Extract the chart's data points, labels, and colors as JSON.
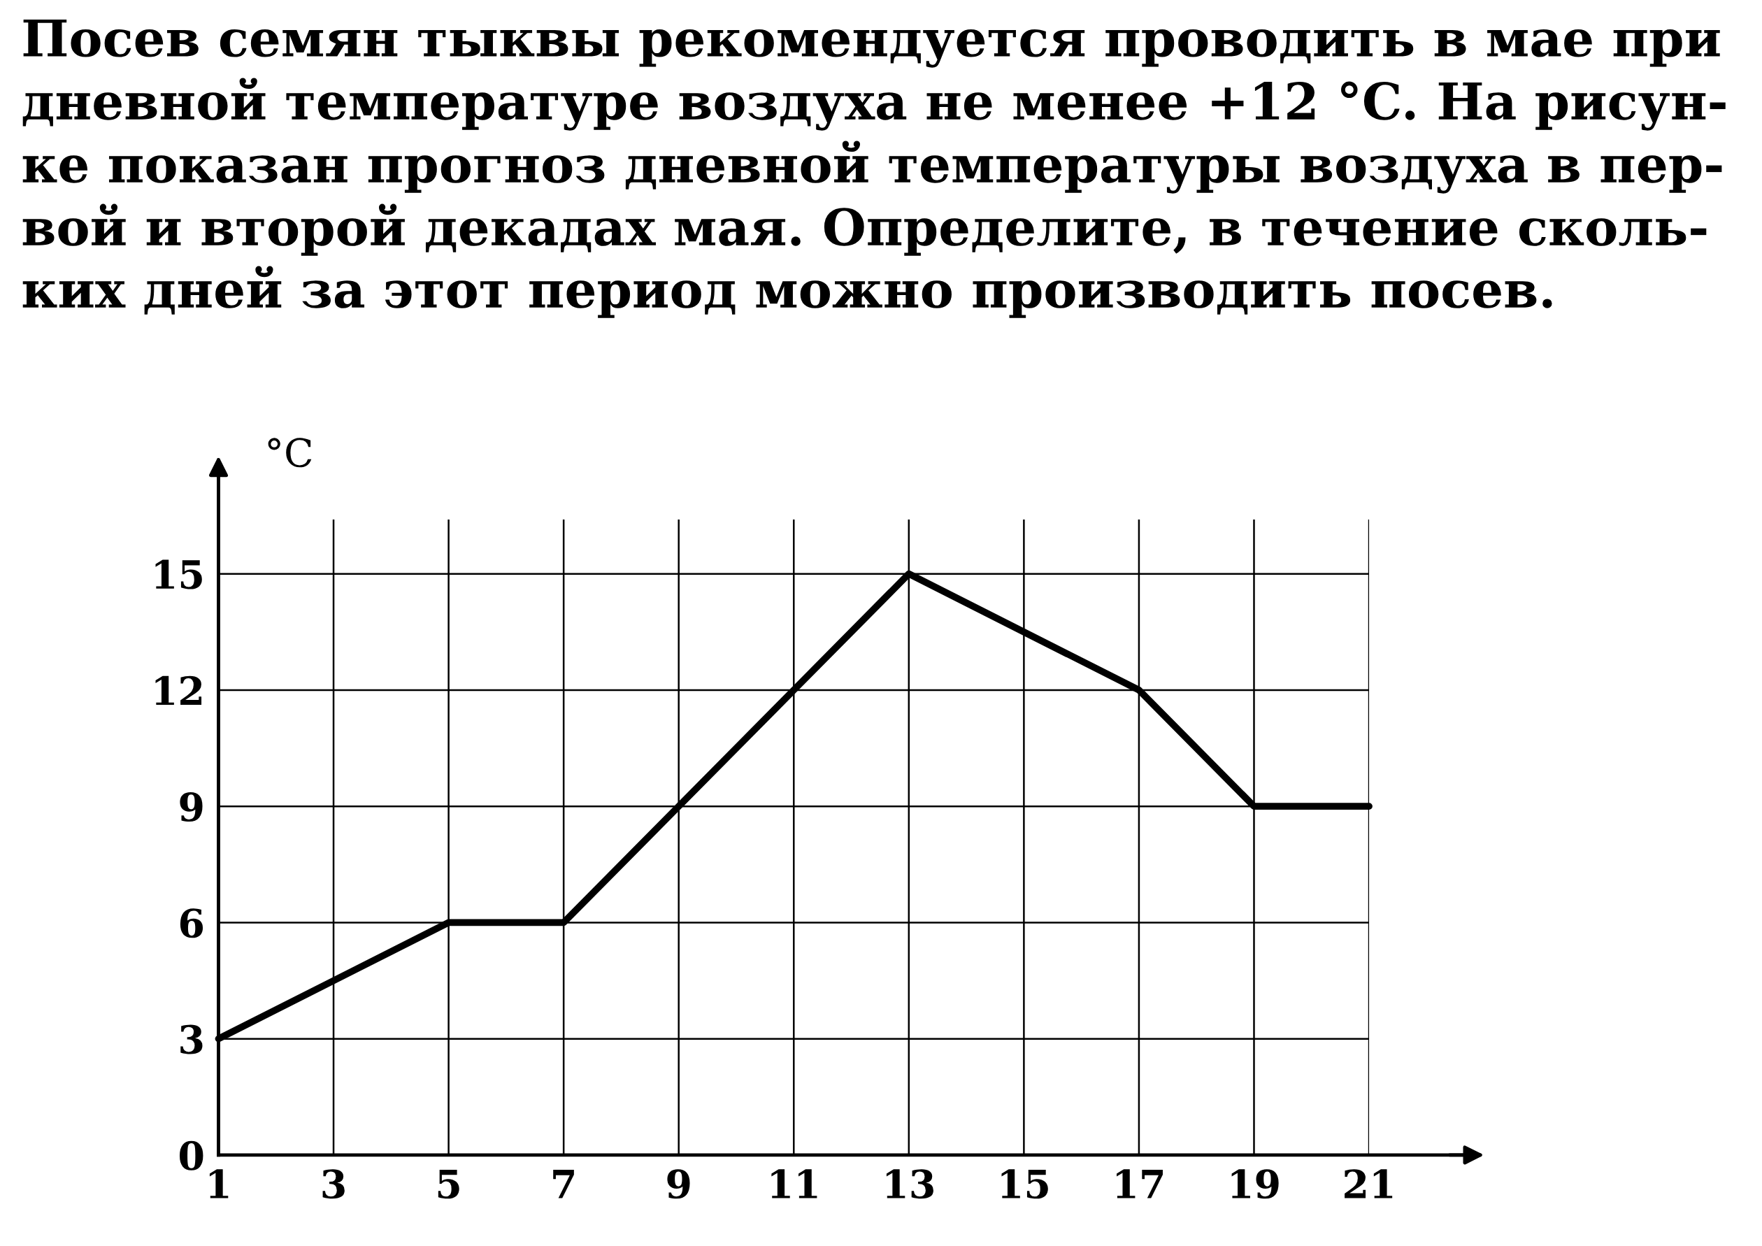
{
  "chart_data": {
    "type": "line",
    "title": "Посев семян тыквы рекомендуется проводить в мае при\nдневной температуре воздуха не менее +12 °C. На рисун-\nке показан прогноз дневной температуры воздуха в пер-\nвой и второй декадах мая. Определите, в течение сколь-\nких дней за этот период можно производить посев.",
    "ylabel": "°C",
    "x": [
      1,
      5,
      7,
      9,
      11,
      13,
      17,
      19,
      21
    ],
    "series": [
      {
        "color": "#000000",
        "values": [
          3,
          6,
          6,
          9,
          12,
          15,
          12,
          9,
          9
        ]
      }
    ],
    "xlim": [
      1,
      21
    ],
    "ylim": [
      0,
      16.4
    ],
    "xticks": [
      1,
      3,
      5,
      7,
      9,
      11,
      13,
      15,
      17,
      19,
      21
    ],
    "yticks": [
      0,
      3,
      6,
      9,
      12,
      15
    ],
    "grid": true,
    "marker": "none",
    "line_style": "solid"
  }
}
